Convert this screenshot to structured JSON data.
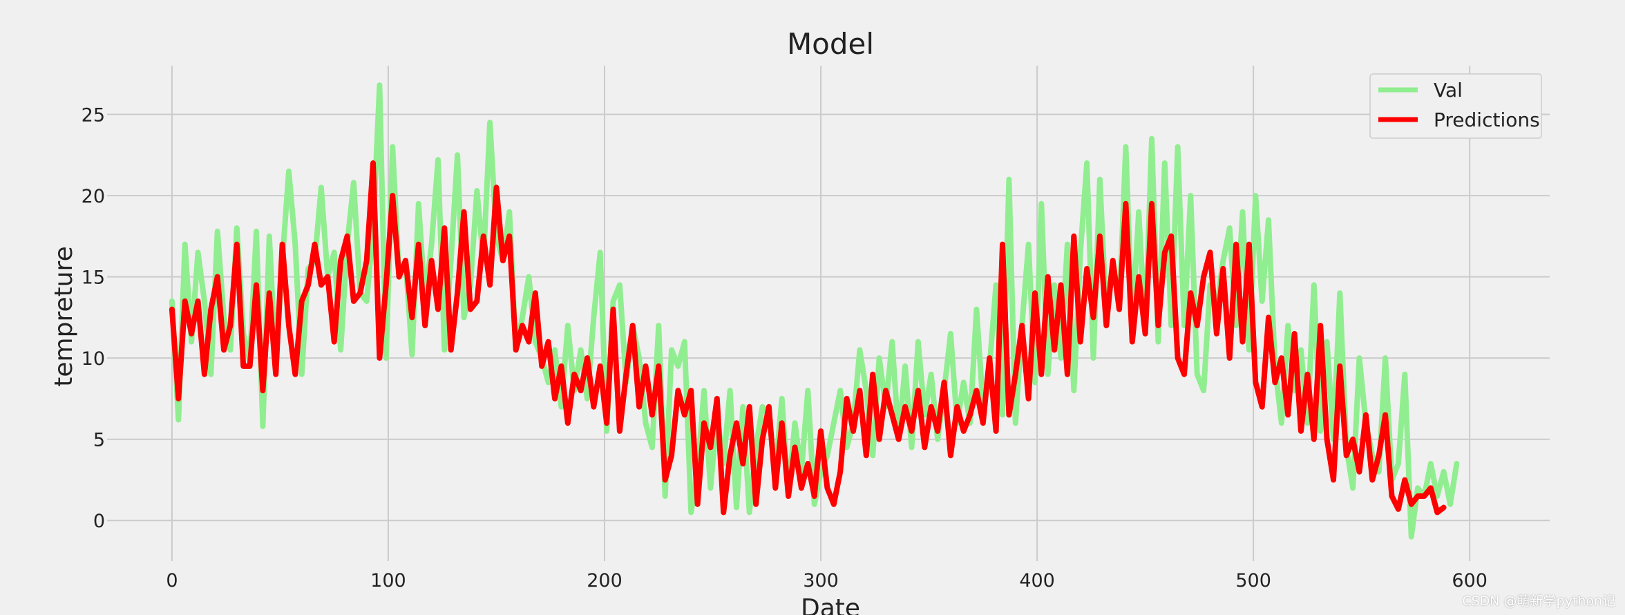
{
  "watermark": "CSDN @萌新学python记",
  "chart_data": {
    "type": "line",
    "title": "Model",
    "xlabel": "Date",
    "ylabel": "tempreture",
    "xlim": [
      -30,
      637
    ],
    "ylim": [
      -2.5,
      28
    ],
    "xticks": [
      0,
      100,
      200,
      300,
      400,
      500,
      600
    ],
    "yticks": [
      0,
      5,
      10,
      15,
      20,
      25
    ],
    "grid": true,
    "legend_position": "top-right",
    "colors": {
      "Val": "#90ee90",
      "Predictions": "#ff0000"
    },
    "x_start": 0,
    "x_step": 3,
    "series": [
      {
        "name": "Val",
        "values": [
          13.5,
          6.2,
          17.0,
          11.0,
          16.5,
          13.5,
          9.0,
          17.8,
          12.5,
          10.5,
          18.0,
          11.5,
          9.8,
          17.8,
          5.8,
          17.5,
          9.5,
          16.0,
          21.5,
          17.0,
          9.0,
          15.5,
          16.0,
          20.5,
          15.0,
          16.5,
          10.5,
          17.0,
          20.8,
          14.0,
          13.5,
          18.0,
          26.8,
          10.0,
          23.0,
          15.0,
          16.0,
          10.2,
          19.5,
          13.5,
          17.0,
          22.2,
          10.5,
          16.0,
          22.5,
          12.5,
          14.5,
          20.3,
          16.0,
          24.5,
          17.5,
          16.0,
          19.0,
          10.5,
          12.5,
          15.0,
          11.0,
          10.0,
          8.5,
          10.5,
          7.0,
          12.0,
          8.0,
          10.5,
          7.5,
          12.5,
          16.5,
          5.5,
          13.5,
          14.5,
          8.5,
          12.0,
          10.0,
          6.0,
          4.5,
          12.0,
          1.5,
          10.5,
          9.5,
          11.0,
          0.5,
          3.0,
          8.0,
          2.0,
          6.5,
          3.5,
          8.0,
          0.8,
          7.0,
          0.5,
          4.5,
          7.0,
          6.5,
          3.0,
          7.5,
          1.5,
          6.0,
          3.0,
          8.0,
          1.0,
          3.0,
          4.0,
          6.0,
          8.0,
          4.5,
          6.0,
          10.5,
          8.0,
          4.0,
          10.0,
          7.0,
          11.0,
          5.0,
          9.5,
          4.5,
          11.0,
          6.5,
          9.0,
          5.0,
          8.0,
          11.5,
          6.0,
          8.5,
          6.0,
          13.0,
          7.0,
          9.5,
          14.5,
          6.5,
          21.0,
          6.0,
          12.0,
          17.0,
          8.5,
          19.5,
          9.0,
          14.5,
          10.0,
          17.0,
          8.0,
          16.5,
          22.0,
          10.0,
          21.0,
          12.5,
          16.0,
          13.0,
          23.0,
          12.0,
          19.0,
          11.5,
          23.5,
          11.0,
          22.0,
          12.0,
          23.0,
          12.0,
          20.0,
          9.0,
          8.0,
          14.5,
          13.0,
          16.0,
          18.0,
          12.0,
          19.0,
          10.5,
          20.0,
          13.5,
          18.5,
          9.5,
          6.0,
          12.0,
          8.0,
          10.5,
          6.0,
          14.5,
          5.5,
          11.0,
          5.0,
          14.0,
          4.5,
          2.0,
          10.0,
          6.0,
          4.0,
          3.0,
          10.0,
          2.5,
          3.5,
          9.0,
          -1.0,
          2.0,
          1.5,
          3.5,
          1.5,
          3.0,
          1.0,
          3.5
        ]
      },
      {
        "name": "Predictions",
        "values": [
          13.0,
          7.5,
          13.5,
          11.5,
          13.5,
          9.0,
          13.0,
          15.0,
          10.5,
          12.0,
          17.0,
          9.5,
          9.5,
          14.5,
          8.0,
          14.0,
          9.0,
          17.0,
          12.0,
          9.0,
          13.5,
          14.5,
          17.0,
          14.5,
          15.0,
          11.0,
          16.0,
          17.5,
          13.5,
          14.0,
          16.0,
          22.0,
          10.0,
          14.5,
          20.0,
          15.0,
          16.0,
          12.5,
          17.0,
          12.0,
          16.0,
          13.0,
          18.0,
          10.5,
          14.0,
          19.0,
          13.0,
          13.5,
          17.5,
          14.5,
          20.5,
          16.0,
          17.5,
          10.5,
          12.0,
          11.0,
          14.0,
          9.5,
          11.0,
          7.5,
          9.5,
          6.0,
          9.0,
          8.0,
          10.0,
          7.0,
          9.5,
          6.0,
          13.0,
          5.5,
          9.0,
          12.0,
          7.0,
          9.5,
          6.5,
          9.5,
          2.5,
          4.0,
          8.0,
          6.5,
          8.0,
          1.0,
          6.0,
          4.5,
          7.5,
          0.5,
          4.0,
          6.0,
          3.5,
          7.0,
          1.0,
          5.0,
          7.0,
          2.0,
          6.0,
          1.5,
          4.5,
          2.0,
          3.5,
          1.5,
          5.5,
          2.0,
          1.0,
          3.0,
          7.5,
          5.5,
          8.0,
          4.0,
          9.0,
          5.0,
          8.0,
          6.5,
          5.0,
          7.0,
          5.5,
          8.0,
          4.5,
          7.0,
          5.5,
          8.5,
          4.0,
          7.0,
          5.5,
          6.5,
          8.0,
          6.0,
          10.0,
          5.5,
          17.0,
          6.5,
          9.0,
          12.0,
          7.5,
          14.0,
          9.0,
          15.0,
          10.5,
          14.5,
          9.0,
          17.5,
          11.0,
          15.5,
          12.5,
          17.5,
          12.0,
          16.0,
          13.0,
          19.5,
          11.0,
          15.0,
          11.5,
          19.5,
          12.0,
          16.5,
          17.5,
          10.0,
          9.0,
          14.0,
          12.0,
          15.0,
          16.5,
          11.5,
          15.5,
          10.0,
          17.0,
          11.0,
          17.0,
          8.5,
          7.0,
          12.5,
          8.5,
          10.0,
          6.5,
          11.5,
          5.5,
          9.0,
          5.0,
          12.0,
          5.0,
          2.5,
          9.5,
          4.0,
          5.0,
          3.0,
          6.5,
          2.5,
          4.0,
          6.5,
          1.5,
          0.7,
          2.5,
          1.0,
          1.5,
          1.5,
          2.0,
          0.5,
          0.8
        ]
      }
    ]
  }
}
